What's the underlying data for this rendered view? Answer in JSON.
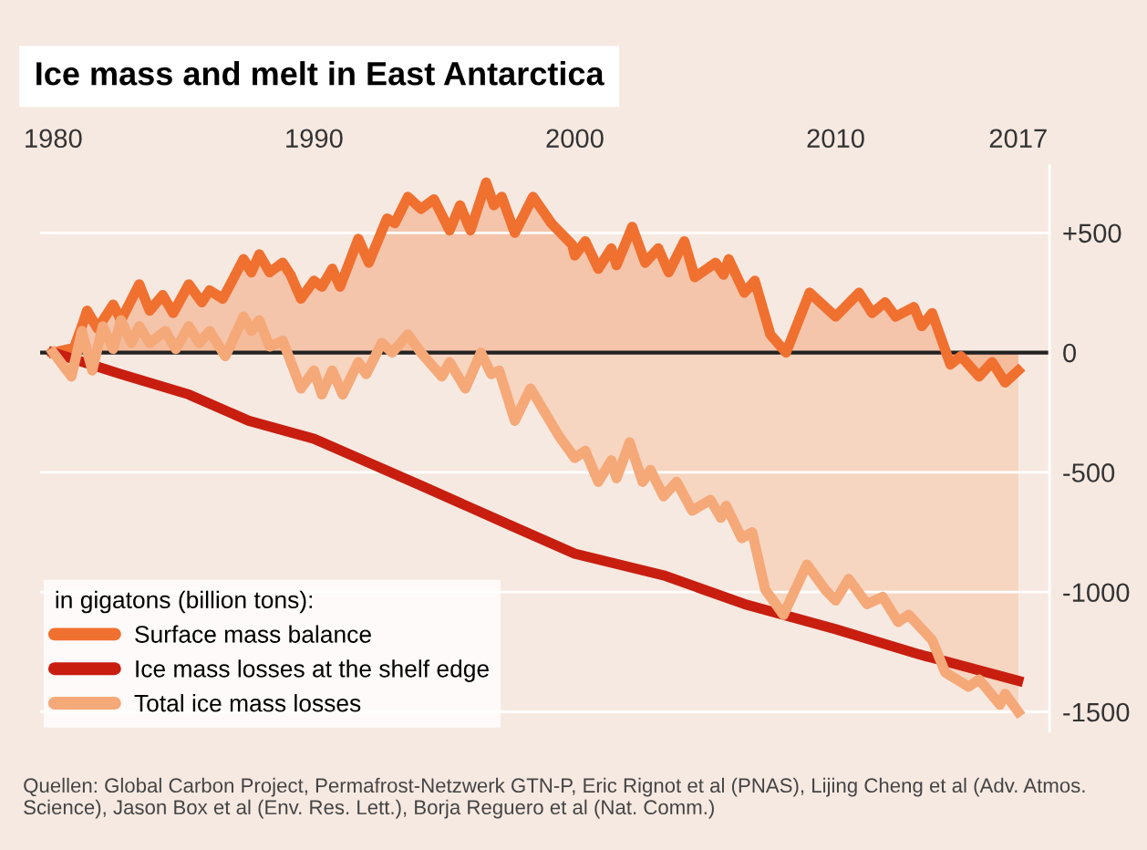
{
  "chart_data": {
    "type": "line",
    "title": "Ice mass and melt in East Antarctica",
    "legend_title": "in gigatons (billion tons):",
    "xlim": [
      1979.5,
      2018.2
    ],
    "xticks": [
      1980,
      1990,
      2000,
      2010,
      2017
    ],
    "ylim": [
      -1580,
      780
    ],
    "yticks": [
      {
        "value": 500,
        "label": "+500"
      },
      0,
      -500,
      -1000,
      -1500
    ],
    "grid": "y",
    "legend": "bottom left",
    "ref_lines": [
      {
        "axis": "y",
        "value": 0,
        "color": "#222222"
      }
    ],
    "series": [
      {
        "name": "Surface mass balance",
        "type": "area",
        "color": "#f07030",
        "x": [
          1980,
          1980.8,
          1981.1,
          1981.3,
          1981.7,
          1982.3,
          1982.6,
          1983.3,
          1983.7,
          1984.2,
          1984.6,
          1985.2,
          1985.7,
          1986,
          1986.5,
          1987.3,
          1987.6,
          1987.9,
          1988.3,
          1988.8,
          1989.1,
          1989.5,
          1990,
          1990.3,
          1990.7,
          1991,
          1991.7,
          1992.1,
          1992.8,
          1993.1,
          1993.6,
          1994.1,
          1994.6,
          1995.2,
          1995.6,
          1996,
          1996.6,
          1996.9,
          1997.2,
          1997.7,
          1998.4,
          1999.1,
          1999.9,
          2000,
          2000.4,
          2000.9,
          2001.4,
          2001.6,
          2002.2,
          2002.7,
          2003.2,
          2003.6,
          2004.2,
          2004.6,
          2005.4,
          2005.7,
          2005.9,
          2006.5,
          2006.9,
          2007.5,
          2008.1,
          2009,
          2010,
          2010.9,
          2011.4,
          2011.9,
          2012.3,
          2013,
          2013.3,
          2013.7,
          2014.4,
          2014.8,
          2015.5,
          2016,
          2016.5,
          2017
        ],
        "values": [
          0,
          20,
          110,
          175,
          100,
          200,
          135,
          285,
          175,
          240,
          165,
          285,
          210,
          260,
          225,
          390,
          335,
          410,
          335,
          375,
          325,
          225,
          300,
          275,
          350,
          275,
          475,
          375,
          560,
          540,
          650,
          600,
          640,
          510,
          615,
          510,
          710,
          615,
          650,
          500,
          650,
          540,
          450,
          405,
          465,
          350,
          435,
          365,
          525,
          375,
          435,
          335,
          465,
          315,
          375,
          325,
          390,
          250,
          300,
          75,
          0,
          250,
          150,
          250,
          165,
          210,
          150,
          190,
          110,
          165,
          -50,
          -15,
          -100,
          -40,
          -125,
          -75
        ]
      },
      {
        "name": "Ice mass losses at the shelf edge",
        "color": "#c81e10",
        "x": [
          1980,
          1982.6,
          1985.2,
          1987.5,
          1990,
          1994.1,
          1997.5,
          2000,
          2003.4,
          2006.5,
          2010,
          2013.2,
          2017
        ],
        "values": [
          0,
          -90,
          -175,
          -285,
          -360,
          -555,
          -720,
          -840,
          -930,
          -1050,
          -1155,
          -1260,
          -1370
        ]
      },
      {
        "name": "Total ice mass losses",
        "type": "area",
        "color": "#f5a878",
        "x": [
          1980,
          1980.7,
          1981.1,
          1981.5,
          1981.9,
          1982.3,
          1982.6,
          1983,
          1983.3,
          1983.7,
          1984.3,
          1984.7,
          1985.2,
          1985.6,
          1986,
          1986.6,
          1987.3,
          1987.6,
          1987.9,
          1988.3,
          1988.8,
          1989.5,
          1990,
          1990.3,
          1990.7,
          1991.1,
          1991.7,
          1992,
          1992.6,
          1993,
          1993.6,
          1994.1,
          1994.9,
          1995.2,
          1995.8,
          1996.4,
          1996.8,
          1997.1,
          1997.7,
          1998.3,
          1999.4,
          2000,
          2000.4,
          2000.9,
          2001.4,
          2001.6,
          2002.1,
          2002.6,
          2002.9,
          2003.4,
          2003.9,
          2004.5,
          2005.2,
          2005.6,
          2005.8,
          2006.4,
          2006.8,
          2007.3,
          2008,
          2008.9,
          2009.6,
          2010,
          2010.5,
          2011.2,
          2011.8,
          2012.4,
          2012.8,
          2013.7,
          2014.2,
          2015.1,
          2015.5,
          2016.3,
          2016.5,
          2017
        ],
        "values": [
          0,
          -100,
          90,
          -75,
          110,
          15,
          135,
          40,
          110,
          40,
          90,
          15,
          110,
          40,
          90,
          -15,
          150,
          90,
          135,
          25,
          50,
          -150,
          -75,
          -175,
          -75,
          -175,
          -40,
          -90,
          40,
          0,
          75,
          0,
          -100,
          -40,
          -150,
          0,
          -90,
          -75,
          -285,
          -150,
          -350,
          -440,
          -410,
          -540,
          -450,
          -525,
          -375,
          -540,
          -490,
          -600,
          -540,
          -660,
          -615,
          -690,
          -640,
          -775,
          -750,
          -990,
          -1095,
          -885,
          -990,
          -1035,
          -945,
          -1050,
          -1020,
          -1125,
          -1095,
          -1200,
          -1335,
          -1395,
          -1365,
          -1470,
          -1425,
          -1500
        ]
      }
    ],
    "annotations": [
      "Quellen: Global Carbon Project, Permafrost-Netzwerk GTN-P, Eric Rignot et al (PNAS), Lijing Cheng et al (Adv. Atmos. Science), Jason Box et al (Env. Res. Lett.), Borja Reguero et al (Nat. Comm.)"
    ]
  }
}
